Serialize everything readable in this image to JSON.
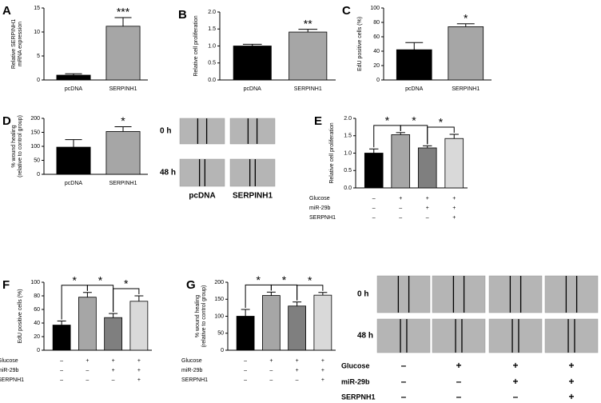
{
  "chart_data": [
    {
      "panel": "A",
      "type": "bar",
      "ylabel": [
        "Relative SERPINH1",
        "mRNA expression"
      ],
      "categories": [
        "pcDNA",
        "SERPINH1"
      ],
      "values": [
        1,
        11.2
      ],
      "errors": [
        0.3,
        1.8
      ],
      "colors": [
        "#000000",
        "#a6a6a6"
      ],
      "ylim": [
        0,
        15
      ],
      "yticks": [
        0,
        5,
        10,
        15
      ],
      "annotation": "***"
    },
    {
      "panel": "B",
      "type": "bar",
      "ylabel": [
        "Relative cell proliferation"
      ],
      "categories": [
        "pcDNA",
        "SERPINH1"
      ],
      "values": [
        1.0,
        1.41
      ],
      "errors": [
        0.05,
        0.08
      ],
      "colors": [
        "#000000",
        "#a6a6a6"
      ],
      "ylim": [
        0,
        2
      ],
      "yticks": [
        {
          "value": 0,
          "label": "0.0"
        },
        0.5,
        {
          "value": 1,
          "label": "1.0"
        },
        1.5,
        {
          "value": 2,
          "label": "2.0"
        }
      ],
      "annotation": "**"
    },
    {
      "panel": "C",
      "type": "bar",
      "ylabel": [
        "EdU positive cells (%)"
      ],
      "categories": [
        "pcDNA",
        "SERPINH1"
      ],
      "values": [
        42,
        74
      ],
      "errors": [
        10,
        4
      ],
      "colors": [
        "#000000",
        "#a6a6a6"
      ],
      "ylim": [
        0,
        100
      ],
      "yticks": [
        0,
        20,
        40,
        60,
        80,
        100
      ],
      "annotation": "*"
    },
    {
      "panel": "D",
      "type": "bar",
      "ylabel": [
        "% wound healing",
        "(relative to control group)"
      ],
      "categories": [
        "pcDNA",
        "SERPINH1"
      ],
      "values": [
        97,
        153
      ],
      "errors": [
        27,
        17
      ],
      "colors": [
        "#000000",
        "#a6a6a6"
      ],
      "ylim": [
        0,
        200
      ],
      "yticks": [
        0,
        50,
        100,
        150,
        200
      ],
      "annotation": "*",
      "images": {
        "rows": [
          "0 h",
          "48 h"
        ],
        "columns": [
          "pcDNA",
          "SERPINH1"
        ]
      }
    },
    {
      "panel": "E",
      "type": "bar",
      "ylabel": [
        "Relative cell proliferation"
      ],
      "categories": [
        null,
        null,
        null,
        null
      ],
      "values": [
        1.0,
        1.53,
        1.15,
        1.42
      ],
      "errors": [
        0.12,
        0.06,
        0.06,
        0.12
      ],
      "colors": [
        "#000000",
        "#a6a6a6",
        "#7f7f7f",
        "#d9d9d9"
      ],
      "ylim": [
        0,
        2
      ],
      "yticks": [
        {
          "value": 0,
          "label": "0.0"
        },
        0.5,
        {
          "value": 1,
          "label": "1.0"
        },
        1.5,
        {
          "value": 2,
          "label": "2.0"
        }
      ],
      "brackets": [
        "*",
        "*",
        "*"
      ],
      "conditions": [
        {
          "name": "Glucose",
          "signs": [
            "–",
            "+",
            "+",
            "+"
          ]
        },
        {
          "name": "miR-29b",
          "signs": [
            "–",
            "–",
            "+",
            "+"
          ]
        },
        {
          "name": "SERPNH1",
          "signs": [
            "–",
            "–",
            "–",
            "+"
          ]
        }
      ]
    },
    {
      "panel": "F",
      "type": "bar",
      "ylabel": [
        "EdU positive cells (%)"
      ],
      "categories": [
        null,
        null,
        null,
        null
      ],
      "values": [
        37,
        78,
        48,
        72
      ],
      "errors": [
        6,
        7,
        6,
        8
      ],
      "colors": [
        "#000000",
        "#a6a6a6",
        "#7f7f7f",
        "#d9d9d9"
      ],
      "ylim": [
        0,
        100
      ],
      "yticks": [
        0,
        20,
        40,
        60,
        80,
        100
      ],
      "brackets": [
        "*",
        "*",
        "*"
      ],
      "conditions": [
        {
          "name": "Glucose",
          "signs": [
            "–",
            "+",
            "+",
            "+"
          ]
        },
        {
          "name": "miR-29b",
          "signs": [
            "–",
            "–",
            "+",
            "+"
          ]
        },
        {
          "name": "SERPNH1",
          "signs": [
            "–",
            "–",
            "–",
            "+"
          ]
        }
      ]
    },
    {
      "panel": "G",
      "type": "bar",
      "ylabel": [
        "% wound healing",
        "(relative to control group)"
      ],
      "categories": [
        null,
        null,
        null,
        null
      ],
      "values": [
        100,
        161,
        130,
        162
      ],
      "errors": [
        20,
        10,
        12,
        8
      ],
      "colors": [
        "#000000",
        "#a6a6a6",
        "#7f7f7f",
        "#d9d9d9"
      ],
      "ylim": [
        0,
        200
      ],
      "yticks": [
        0,
        50,
        100,
        150,
        200
      ],
      "brackets": [
        "*",
        "*",
        "*"
      ],
      "conditions": [
        {
          "name": "Glucose",
          "signs": [
            "–",
            "+",
            "+",
            "+"
          ]
        },
        {
          "name": "miR-29b",
          "signs": [
            "–",
            "–",
            "+",
            "+"
          ]
        },
        {
          "name": "SERPNH1",
          "signs": [
            "–",
            "–",
            "–",
            "+"
          ]
        }
      ],
      "images": {
        "rows": [
          "0 h",
          "48 h"
        ],
        "conditions": [
          {
            "name": "Glucose",
            "signs": [
              "–",
              "+",
              "+",
              "+"
            ]
          },
          {
            "name": "miR-29b",
            "signs": [
              "–",
              "–",
              "+",
              "+"
            ]
          },
          {
            "name": "SERPNH1",
            "signs": [
              "–",
              "–",
              "–",
              "+"
            ]
          }
        ]
      }
    }
  ]
}
